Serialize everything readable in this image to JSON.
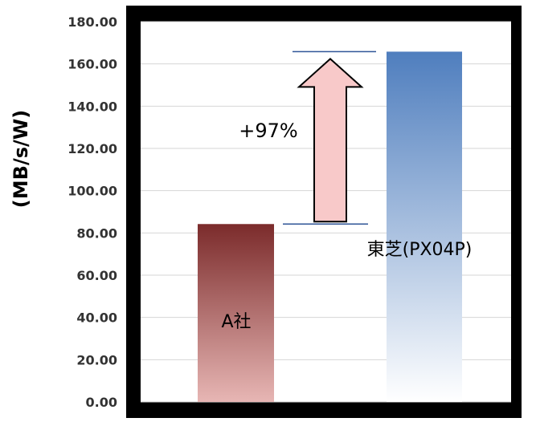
{
  "chart_data": {
    "type": "bar",
    "ylabel": "(MB/s/W)",
    "ylim": [
      0,
      180
    ],
    "yticks": [
      "0.00",
      "20.00",
      "40.00",
      "60.00",
      "80.00",
      "100.00",
      "120.00",
      "140.00",
      "160.00",
      "180.00"
    ],
    "grid": true,
    "legend": "none",
    "categories": [
      "A社",
      "東芝(PX04P)"
    ],
    "values": [
      84.2,
      165.8
    ],
    "colors": {
      "a_top": "#7b2b2b",
      "a_bottom": "#e7b6b4",
      "toshiba_top": "#4f7ebe",
      "toshiba_bottom": "#ffffff",
      "frame": "#000000",
      "plot_bg": "#ffffff",
      "grid": "#d6d6d6",
      "arrow_fill": "#f8c9c9",
      "guide": "#2f5597"
    },
    "annotation": {
      "text": "+97%",
      "from": 84.2,
      "to": 165.8,
      "shape": "up-arrow"
    }
  }
}
